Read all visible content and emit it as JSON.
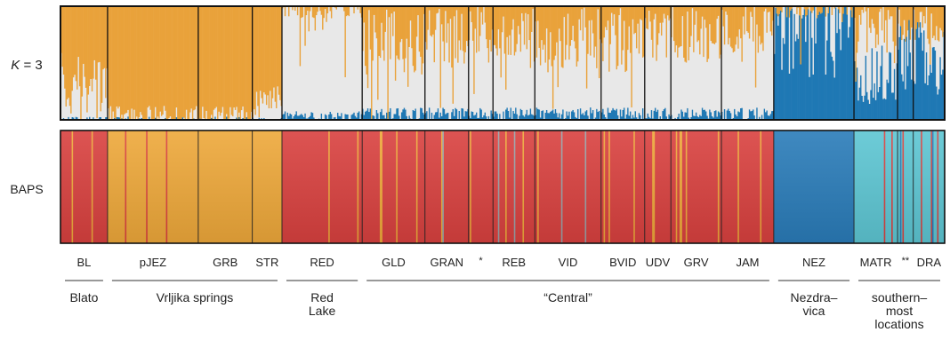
{
  "chart_data": {
    "type": "bar",
    "subtype": "stacked-structure-plot",
    "panels": [
      {
        "label_prefix": "K",
        "label_suffix": " = 3",
        "description_type": "ancestry-proportion",
        "colors": {
          "cluster1": "#e9a23b",
          "cluster2": "#e8e8e8",
          "cluster3": "#1f78b4"
        }
      },
      {
        "label": "BAPS",
        "description_type": "cluster-assignment",
        "colors": {
          "red": "#d9413f",
          "orange": "#eea83a",
          "blue": "#2a7cb9",
          "cyan": "#5dc6d3",
          "grey": "#9aa0a6"
        }
      }
    ],
    "populations": [
      "BL",
      "pJEZ",
      "GRB",
      "STR",
      "RED",
      "GLD",
      "GRAN",
      "*",
      "REB",
      "VID",
      "BVID",
      "UDV",
      "GRV",
      "JAM",
      "NEZ",
      "MATR",
      "**",
      "DRA"
    ],
    "population_relative_widths": [
      54,
      104,
      62,
      34,
      92,
      72,
      50,
      28,
      48,
      76,
      50,
      30,
      58,
      60,
      92,
      50,
      18,
      36
    ],
    "k3_mean_proportions": [
      {
        "pop": "BL",
        "cluster1": 0.7,
        "cluster2": 0.3,
        "cluster3": 0.0
      },
      {
        "pop": "pJEZ",
        "cluster1": 0.97,
        "cluster2": 0.03,
        "cluster3": 0.0
      },
      {
        "pop": "GRB",
        "cluster1": 0.97,
        "cluster2": 0.03,
        "cluster3": 0.0
      },
      {
        "pop": "STR",
        "cluster1": 0.85,
        "cluster2": 0.15,
        "cluster3": 0.0
      },
      {
        "pop": "RED",
        "cluster1": 0.02,
        "cluster2": 0.95,
        "cluster3": 0.03
      },
      {
        "pop": "GLD",
        "cluster1": 0.35,
        "cluster2": 0.6,
        "cluster3": 0.05
      },
      {
        "pop": "GRAN",
        "cluster1": 0.3,
        "cluster2": 0.65,
        "cluster3": 0.05
      },
      {
        "pop": "*",
        "cluster1": 0.2,
        "cluster2": 0.75,
        "cluster3": 0.05
      },
      {
        "pop": "REB",
        "cluster1": 0.25,
        "cluster2": 0.7,
        "cluster3": 0.05
      },
      {
        "pop": "VID",
        "cluster1": 0.3,
        "cluster2": 0.65,
        "cluster3": 0.05
      },
      {
        "pop": "BVID",
        "cluster1": 0.3,
        "cluster2": 0.65,
        "cluster3": 0.05
      },
      {
        "pop": "UDV",
        "cluster1": 0.25,
        "cluster2": 0.7,
        "cluster3": 0.05
      },
      {
        "pop": "GRV",
        "cluster1": 0.25,
        "cluster2": 0.7,
        "cluster3": 0.05
      },
      {
        "pop": "JAM",
        "cluster1": 0.2,
        "cluster2": 0.75,
        "cluster3": 0.05
      },
      {
        "pop": "NEZ",
        "cluster1": 0.02,
        "cluster2": 0.0,
        "cluster3": 0.98
      },
      {
        "pop": "MATR",
        "cluster1": 0.2,
        "cluster2": 0.4,
        "cluster3": 0.4
      },
      {
        "pop": "**",
        "cluster1": 0.15,
        "cluster2": 0.2,
        "cluster3": 0.65
      },
      {
        "pop": "DRA",
        "cluster1": 0.2,
        "cluster2": 0.25,
        "cluster3": 0.55
      }
    ],
    "baps_dominant_cluster": [
      {
        "pop": "BL",
        "cluster": "red"
      },
      {
        "pop": "pJEZ",
        "cluster": "orange"
      },
      {
        "pop": "GRB",
        "cluster": "orange"
      },
      {
        "pop": "STR",
        "cluster": "orange"
      },
      {
        "pop": "RED",
        "cluster": "red"
      },
      {
        "pop": "GLD",
        "cluster": "red"
      },
      {
        "pop": "GRAN",
        "cluster": "red"
      },
      {
        "pop": "*",
        "cluster": "red"
      },
      {
        "pop": "REB",
        "cluster": "red"
      },
      {
        "pop": "VID",
        "cluster": "red"
      },
      {
        "pop": "BVID",
        "cluster": "red"
      },
      {
        "pop": "UDV",
        "cluster": "red"
      },
      {
        "pop": "GRV",
        "cluster": "red"
      },
      {
        "pop": "JAM",
        "cluster": "red"
      },
      {
        "pop": "NEZ",
        "cluster": "blue"
      },
      {
        "pop": "MATR",
        "cluster": "cyan"
      },
      {
        "pop": "**",
        "cluster": "cyan"
      },
      {
        "pop": "DRA",
        "cluster": "cyan"
      }
    ],
    "groups": [
      {
        "lines": [
          "Blato"
        ],
        "from": "BL",
        "to": "BL"
      },
      {
        "lines": [
          "Vrljika springs"
        ],
        "from": "pJEZ",
        "to": "STR"
      },
      {
        "lines": [
          "Red",
          "Lake"
        ],
        "from": "RED",
        "to": "RED"
      },
      {
        "lines": [
          "“Central”"
        ],
        "from": "GLD",
        "to": "JAM"
      },
      {
        "lines": [
          "Nezdra–",
          "vica"
        ],
        "from": "NEZ",
        "to": "NEZ"
      },
      {
        "lines": [
          "southern–",
          "most",
          "locations"
        ],
        "from": "MATR",
        "to": "DRA"
      }
    ]
  }
}
